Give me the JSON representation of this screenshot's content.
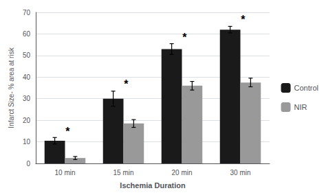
{
  "chart_data": {
    "type": "bar",
    "categories": [
      "10 min",
      "15 min",
      "20 min",
      "30 min"
    ],
    "series": [
      {
        "name": "Control",
        "color": "#1a1a1a",
        "values": [
          10.5,
          30.0,
          53.0,
          62.0
        ],
        "errors": [
          1.5,
          3.5,
          2.5,
          1.5
        ]
      },
      {
        "name": "NIR",
        "color": "#999999",
        "values": [
          2.5,
          18.5,
          36.0,
          37.5
        ],
        "errors": [
          0.7,
          1.8,
          2.0,
          2.0
        ]
      }
    ],
    "xlabel": "Ischemia Duration",
    "ylabel": "Infarct Size- % area at risk",
    "ylim": [
      0,
      70
    ],
    "yticks": [
      0,
      10,
      20,
      30,
      40,
      50,
      60,
      70
    ],
    "grid": true,
    "legend": "right",
    "annotations": [
      {
        "text": "*",
        "category": "10 min",
        "y": 13.5
      },
      {
        "text": "*",
        "category": "15 min",
        "y": 35.5
      },
      {
        "text": "*",
        "category": "20 min",
        "y": 57.0
      },
      {
        "text": "*",
        "category": "30 min",
        "y": 65.5
      }
    ]
  }
}
